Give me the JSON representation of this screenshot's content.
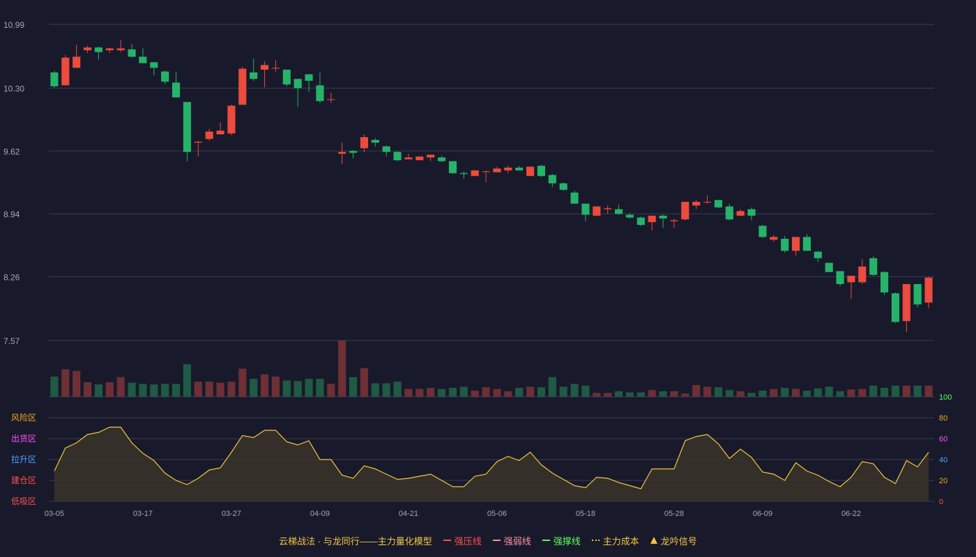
{
  "chart_data": {
    "type": "candlestick",
    "price_axis": {
      "ticks": [
        "10.99",
        "10.30",
        "9.62",
        "8.94",
        "8.26",
        "7.57"
      ],
      "min": 7.57,
      "max": 10.99
    },
    "x_labels": [
      "03-05",
      "03-17",
      "03-27",
      "04-09",
      "04-21",
      "05-06",
      "05-18",
      "05-28",
      "06-09",
      "06-22"
    ],
    "x_label_index": [
      0,
      8,
      16,
      24,
      32,
      40,
      48,
      56,
      64,
      72
    ],
    "candles": [
      [
        10.47,
        10.32,
        10.49,
        10.3
      ],
      [
        10.33,
        10.63,
        10.66,
        10.33
      ],
      [
        10.52,
        10.64,
        10.77,
        10.52
      ],
      [
        10.71,
        10.74,
        10.76,
        10.68
      ],
      [
        10.74,
        10.69,
        10.75,
        10.61
      ],
      [
        10.71,
        10.73,
        10.74,
        10.68
      ],
      [
        10.71,
        10.73,
        10.82,
        10.69
      ],
      [
        10.72,
        10.64,
        10.78,
        10.63
      ],
      [
        10.64,
        10.57,
        10.73,
        10.57
      ],
      [
        10.58,
        10.52,
        10.58,
        10.44
      ],
      [
        10.48,
        10.37,
        10.49,
        10.34
      ],
      [
        10.36,
        10.2,
        10.47,
        10.2
      ],
      [
        10.15,
        9.61,
        10.15,
        9.51
      ],
      [
        9.71,
        9.72,
        9.73,
        9.56
      ],
      [
        9.75,
        9.83,
        9.86,
        9.73
      ],
      [
        9.8,
        9.84,
        9.93,
        9.8
      ],
      [
        9.81,
        10.11,
        10.12,
        9.79
      ],
      [
        10.12,
        10.51,
        10.53,
        10.12
      ],
      [
        10.47,
        10.4,
        10.62,
        10.38
      ],
      [
        10.5,
        10.55,
        10.59,
        10.31
      ],
      [
        10.52,
        10.52,
        10.6,
        10.48
      ],
      [
        10.5,
        10.34,
        10.5,
        10.32
      ],
      [
        10.4,
        10.3,
        10.4,
        10.1
      ],
      [
        10.45,
        10.38,
        10.45,
        10.26
      ],
      [
        10.33,
        10.16,
        10.47,
        10.14
      ],
      [
        10.18,
        10.18,
        10.25,
        10.14
      ],
      [
        9.59,
        9.61,
        9.71,
        9.48
      ],
      [
        9.62,
        9.6,
        9.63,
        9.54
      ],
      [
        9.65,
        9.77,
        9.8,
        9.61
      ],
      [
        9.74,
        9.71,
        9.76,
        9.67
      ],
      [
        9.67,
        9.61,
        9.68,
        9.56
      ],
      [
        9.61,
        9.52,
        9.62,
        9.51
      ],
      [
        9.53,
        9.55,
        9.59,
        9.53
      ],
      [
        9.52,
        9.56,
        9.56,
        9.52
      ],
      [
        9.55,
        9.58,
        9.58,
        9.51
      ],
      [
        9.55,
        9.51,
        9.57,
        9.5
      ],
      [
        9.51,
        9.38,
        9.51,
        9.37
      ],
      [
        9.38,
        9.37,
        9.4,
        9.32
      ],
      [
        9.35,
        9.41,
        9.41,
        9.35
      ],
      [
        9.4,
        9.4,
        9.41,
        9.28
      ],
      [
        9.39,
        9.43,
        9.45,
        9.39
      ],
      [
        9.41,
        9.44,
        9.46,
        9.38
      ],
      [
        9.44,
        9.41,
        9.46,
        9.41
      ],
      [
        9.35,
        9.45,
        9.45,
        9.35
      ],
      [
        9.46,
        9.35,
        9.47,
        9.34
      ],
      [
        9.36,
        9.27,
        9.37,
        9.23
      ],
      [
        9.27,
        9.2,
        9.28,
        9.19
      ],
      [
        9.17,
        9.05,
        9.19,
        9.05
      ],
      [
        9.05,
        8.93,
        9.05,
        8.86
      ],
      [
        8.92,
        9.02,
        9.02,
        8.92
      ],
      [
        8.99,
        9.0,
        9.03,
        8.94
      ],
      [
        8.99,
        8.94,
        9.04,
        8.93
      ],
      [
        8.93,
        8.9,
        8.95,
        8.89
      ],
      [
        8.9,
        8.82,
        8.91,
        8.81
      ],
      [
        8.85,
        8.92,
        8.92,
        8.76
      ],
      [
        8.92,
        8.89,
        8.93,
        8.79
      ],
      [
        8.86,
        8.87,
        8.89,
        8.79
      ],
      [
        8.88,
        9.07,
        9.07,
        8.87
      ],
      [
        9.03,
        9.07,
        9.09,
        8.99
      ],
      [
        9.07,
        9.07,
        9.14,
        9.05
      ],
      [
        9.09,
        9.01,
        9.09,
        9.0
      ],
      [
        9.02,
        8.88,
        9.05,
        8.87
      ],
      [
        8.92,
        8.97,
        8.99,
        8.92
      ],
      [
        8.99,
        8.92,
        9.01,
        8.87
      ],
      [
        8.81,
        8.69,
        8.82,
        8.68
      ],
      [
        8.66,
        8.69,
        8.71,
        8.64
      ],
      [
        8.67,
        8.54,
        8.7,
        8.52
      ],
      [
        8.54,
        8.69,
        8.69,
        8.49
      ],
      [
        8.69,
        8.54,
        8.72,
        8.54
      ],
      [
        8.53,
        8.46,
        8.54,
        8.42
      ],
      [
        8.41,
        8.31,
        8.41,
        8.32
      ],
      [
        8.32,
        8.18,
        8.32,
        8.16
      ],
      [
        8.2,
        8.27,
        8.27,
        8.02
      ],
      [
        8.2,
        8.37,
        8.45,
        8.18
      ],
      [
        8.46,
        8.28,
        8.48,
        8.27
      ],
      [
        8.31,
        8.09,
        8.32,
        8.06
      ],
      [
        8.08,
        7.77,
        8.09,
        7.76
      ],
      [
        7.78,
        8.18,
        8.18,
        7.66
      ],
      [
        8.18,
        7.96,
        8.18,
        7.93
      ],
      [
        7.98,
        8.25,
        8.26,
        7.92
      ]
    ],
    "volume": [
      36,
      49,
      46,
      26,
      22,
      26,
      35,
      25,
      23,
      22,
      23,
      23,
      58,
      27,
      27,
      25,
      27,
      50,
      32,
      40,
      36,
      29,
      28,
      32,
      32,
      23,
      100,
      35,
      51,
      24,
      24,
      27,
      14,
      14,
      16,
      14,
      16,
      18,
      11,
      17,
      14,
      10,
      16,
      18,
      17,
      35,
      18,
      23,
      20,
      7,
      7,
      10,
      8,
      8,
      12,
      10,
      10,
      6,
      21,
      18,
      17,
      12,
      10,
      7,
      11,
      14,
      16,
      14,
      11,
      15,
      18,
      10,
      13,
      14,
      20,
      16,
      20,
      20,
      20,
      20
    ],
    "volume_colors": [],
    "oscillator": {
      "zones": [
        "风险区",
        "出货区",
        "拉升区",
        "建仓区",
        "低吸区"
      ],
      "right_ticks": [
        "100",
        "80",
        "60",
        "40",
        "20",
        "0"
      ],
      "values": [
        29,
        51,
        56,
        64,
        66,
        71,
        71,
        56,
        46,
        39,
        27,
        20,
        16,
        22,
        30,
        32,
        47,
        63,
        61,
        68,
        68,
        57,
        54,
        58,
        40,
        40,
        25,
        22,
        34,
        31,
        26,
        21,
        22,
        24,
        26,
        20,
        14,
        14,
        24,
        26,
        38,
        43,
        39,
        47,
        35,
        27,
        21,
        15,
        13,
        23,
        22,
        18,
        15,
        12,
        31,
        31,
        31,
        58,
        62,
        64,
        55,
        41,
        50,
        42,
        28,
        26,
        20,
        37,
        29,
        25,
        19,
        14,
        23,
        38,
        36,
        23,
        17,
        39,
        33,
        47
      ]
    },
    "legend": [
      {
        "label": "云梯战法 · 与龙同行——主力量化模型",
        "color": "#f5c542",
        "style": "text"
      },
      {
        "label": "强压线",
        "color": "#ff4d4d",
        "style": "solid"
      },
      {
        "label": "强弱线",
        "color": "#ff8fa3",
        "style": "dash"
      },
      {
        "label": "强撑线",
        "color": "#5dff5d",
        "style": "solid"
      },
      {
        "label": "主力成本",
        "color": "#f5c542",
        "style": "dot"
      },
      {
        "label": "龙吟信号",
        "color": "#f5c542",
        "style": "tri"
      }
    ],
    "colors": {
      "up": "#ec4b3d",
      "down": "#25b36a",
      "vol_up": "#6e2f35",
      "vol_down": "#1f5a44",
      "osc_line": "#f5c542",
      "grid": "#3a3d50",
      "axis_text": "#a5a7b5",
      "zone_colors": [
        "#f5a623",
        "#ff4dff",
        "#4aa3ff",
        "#ff4d4d",
        "#ff4d4d"
      ],
      "right_tick_colors": [
        "#5dff5d",
        "#f5a623",
        "#ff4dff",
        "#4aa3ff",
        "#f5a623",
        "#ff4d4d"
      ]
    }
  }
}
